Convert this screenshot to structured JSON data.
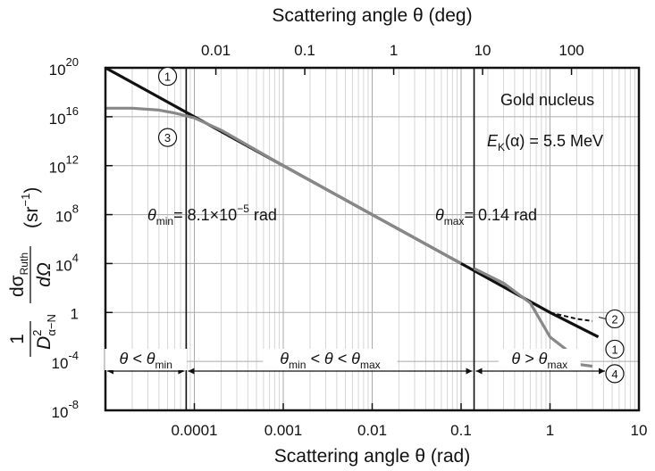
{
  "chart_data": {
    "type": "line",
    "x_scale": "log",
    "y_scale": "log",
    "xlim": [
      1e-05,
      10
    ],
    "ylim": [
      1e-08,
      1e+20
    ],
    "xlabel": "Scattering angle θ (rad)",
    "top_xlabel": "Scattering angle θ (deg)",
    "ylabel": {
      "prefix": "1",
      "D": "D",
      "D_sup": "2",
      "D_sub": "α−N",
      "num": "dσ",
      "num_sub": "Ruth",
      "den": "dΩ",
      "unit": "(sr",
      "unit_sup": "−1",
      "unit_close": ")"
    },
    "x_ticks": [
      {
        "value": 0.0001,
        "label": "0.0001"
      },
      {
        "value": 0.001,
        "label": "0.001"
      },
      {
        "value": 0.01,
        "label": "0.01"
      },
      {
        "value": 0.1,
        "label": "0.1"
      },
      {
        "value": 1,
        "label": "1"
      },
      {
        "value": 10,
        "label": "10"
      }
    ],
    "top_ticks_deg": [
      {
        "value": 0.01,
        "label": "0.01"
      },
      {
        "value": 0.1,
        "label": "0.1"
      },
      {
        "value": 1,
        "label": "1"
      },
      {
        "value": 10,
        "label": "10"
      },
      {
        "value": 100,
        "label": "100"
      }
    ],
    "y_ticks": [
      {
        "exp": 20,
        "base": "10",
        "sup": "20"
      },
      {
        "exp": 16,
        "base": "10",
        "sup": "16"
      },
      {
        "exp": 12,
        "base": "10",
        "sup": "12"
      },
      {
        "exp": 8,
        "base": "10",
        "sup": "8"
      },
      {
        "exp": 4,
        "base": "10",
        "sup": "4"
      },
      {
        "exp": 0,
        "base": "1",
        "sup": ""
      },
      {
        "exp": -4,
        "base": "10",
        "sup": "-4"
      },
      {
        "exp": -8,
        "base": "10",
        "sup": "-8"
      }
    ],
    "grid": true,
    "series": [
      {
        "id": "1",
        "color": "#111111",
        "style": "solid",
        "x": [
          1e-05,
          0.0001,
          0.001,
          0.01,
          0.1,
          1,
          3.5
        ],
        "y": [
          1e+20,
          1e+16,
          1000000000000.0,
          100000000.0,
          10000.0,
          1,
          0.01
        ]
      },
      {
        "id": "2",
        "color": "#111111",
        "style": "dashed",
        "x": [
          1,
          2,
          3
        ],
        "y": [
          1,
          0.3,
          0.2
        ]
      },
      {
        "id": "3",
        "color": "#888888",
        "style": "solid",
        "x": [
          1e-05,
          2e-05,
          4e-05,
          6e-05,
          0.0001,
          0.0002,
          0.001,
          0.01,
          0.1
        ],
        "y": [
          5e+16,
          5e+16,
          3.5e+16,
          2e+16,
          8000000000000000.0,
          800000000000000.0,
          1000000000000.0,
          100000000.0,
          10000.0
        ]
      },
      {
        "id": "4",
        "color": "#888888",
        "style": "solid",
        "x": [
          0.14,
          0.3,
          0.6,
          1,
          1.5,
          2,
          3
        ],
        "y": [
          4000.0,
          250.0,
          6,
          0.01,
          0.001,
          6e-05,
          4e-05
        ]
      }
    ],
    "vlines": [
      8.1e-05,
      0.14
    ],
    "circle_labels": [
      {
        "text": "1",
        "x": 5e-05,
        "y": 2e+19
      },
      {
        "text": "3",
        "x": 5e-05,
        "y": 200000000000000.0
      },
      {
        "text": "2",
        "x": 6,
        "y": 0.3
      },
      {
        "text": "1",
        "x": 6,
        "y": 0.001
      },
      {
        "text": "4",
        "x": 6,
        "y": 1e-05
      }
    ],
    "annotations": {
      "nucleus": "Gold nucleus",
      "energy_E": "E",
      "energy_sub": "K",
      "energy_rest": "(α) = 5.5 MeV",
      "theta_min_sym": "θ",
      "theta_min_sub": "min",
      "theta_min_value": "= 8.1×10",
      "theta_min_exp": "−5",
      "theta_min_unit": "rad",
      "theta_max_sym": "θ",
      "theta_max_sub": "max",
      "theta_max_value": "= 0.14 rad",
      "region_left": {
        "a": "θ < θ",
        "sub": "min"
      },
      "region_mid": {
        "a": "θ",
        "sub1": "min",
        "b": " < θ < θ",
        "sub2": "max"
      },
      "region_right": {
        "a": "θ > θ",
        "sub": "max"
      }
    }
  }
}
